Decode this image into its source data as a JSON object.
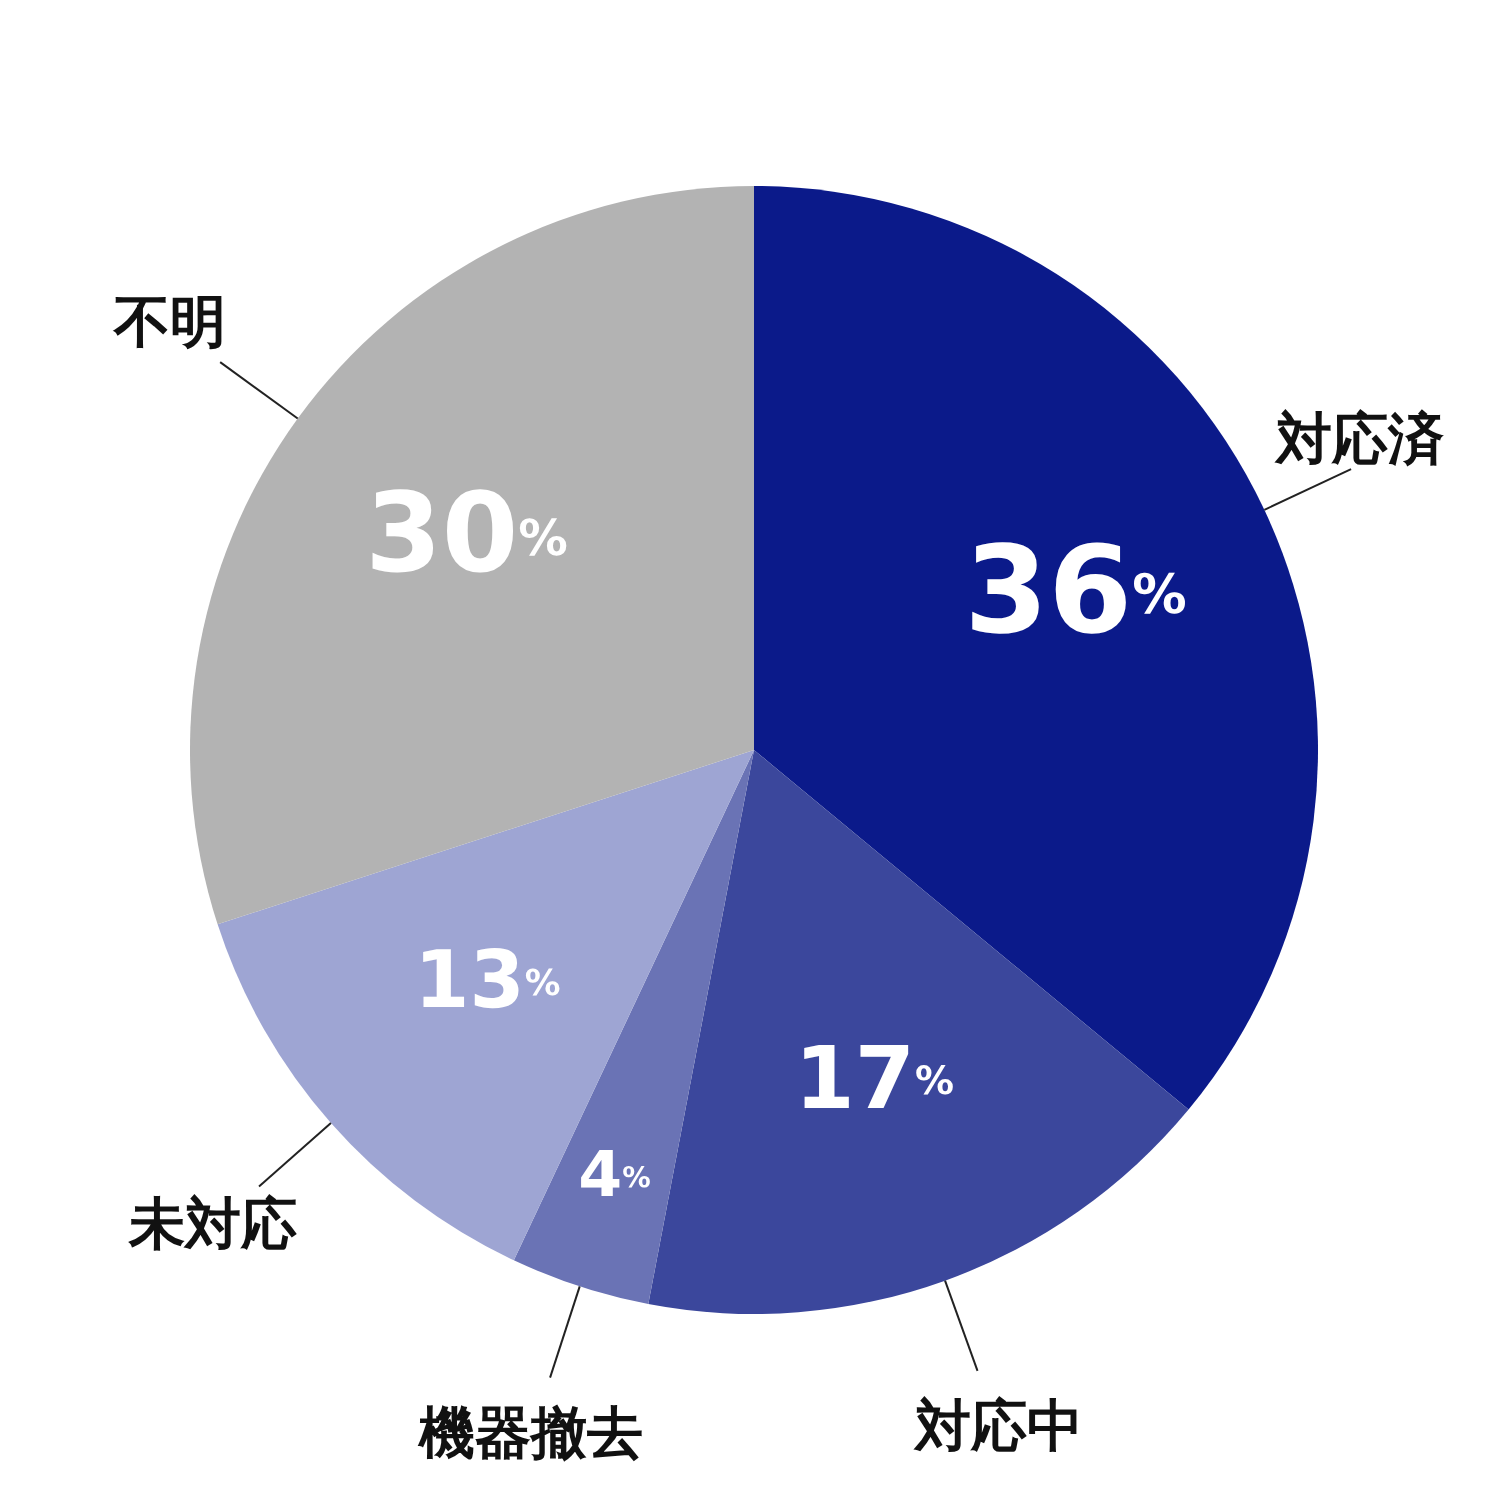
{
  "chart_data": {
    "type": "pie",
    "categories": [
      "対応済",
      "対応中",
      "機器撤去",
      "未対応",
      "不明"
    ],
    "values": [
      36,
      17,
      4,
      13,
      30
    ],
    "colors": [
      "#0b1a8a",
      "#3b479c",
      "#6a73b5",
      "#9ea5d3",
      "#b3b3b3"
    ],
    "value_labels": [
      "36%",
      "17%",
      "4%",
      "13%",
      "30%"
    ]
  }
}
